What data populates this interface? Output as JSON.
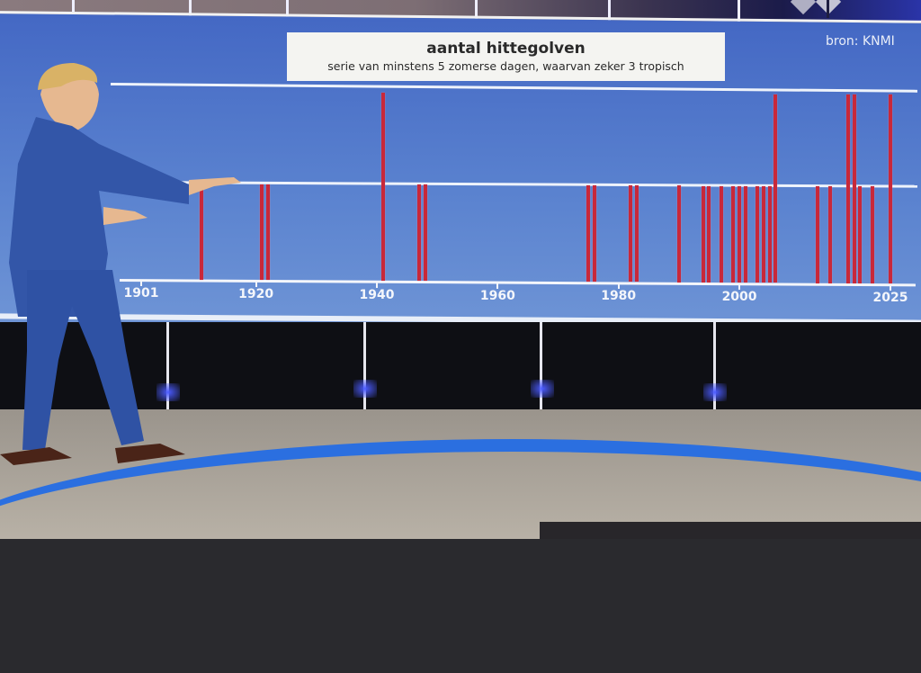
{
  "broadcast": {
    "source_label": "bron: KNMI",
    "channel_logo": "npo-logo-icon"
  },
  "chart_data": {
    "type": "bar",
    "title": "aantal hittegolven",
    "subtitle": "serie van minstens 5 zomerse dagen, waarvan zeker 3 tropisch",
    "xlabel": "",
    "ylabel": "",
    "xlim": [
      1901,
      2025
    ],
    "ylim": [
      0,
      2
    ],
    "grid": true,
    "gridlines_y": [
      1,
      2
    ],
    "x_ticks": [
      1901,
      1920,
      1940,
      1960,
      1980,
      2000,
      2025
    ],
    "categories": [
      1911,
      1921,
      1922,
      1941,
      1947,
      1948,
      1975,
      1976,
      1982,
      1983,
      1990,
      1994,
      1995,
      1997,
      1999,
      2000,
      2001,
      2003,
      2004,
      2005,
      2006,
      2013,
      2015,
      2018,
      2019,
      2020,
      2022,
      2025
    ],
    "values": [
      1,
      1,
      1,
      2,
      1,
      1,
      1,
      1,
      1,
      1,
      1,
      1,
      1,
      1,
      1,
      1,
      1,
      1,
      1,
      1,
      2,
      1,
      1,
      2,
      2,
      1,
      1,
      2
    ],
    "bar_color": "#c8283a",
    "background_color": "#5a82cf",
    "source": "bron: KNMI"
  }
}
